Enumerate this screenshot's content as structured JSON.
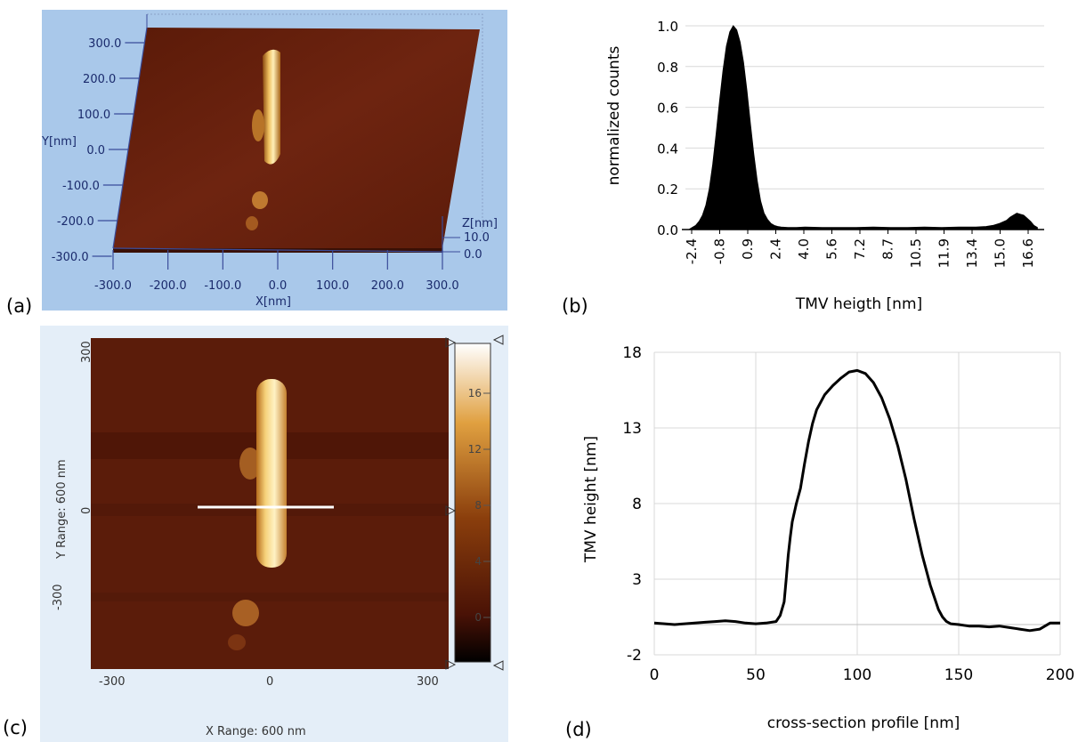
{
  "labels": {
    "a": "(a)",
    "b": "(b)",
    "c": "(c)",
    "d": "(d)"
  },
  "panel_a": {
    "y_axis_title": "Y[nm]",
    "x_axis_title": "X[nm]",
    "z_axis_title": "Z[nm]",
    "y_ticks": [
      "300.0",
      "200.0",
      "100.0",
      "0.0",
      "-100.0",
      "-200.0",
      "-300.0"
    ],
    "x_ticks": [
      "-300.0",
      "-200.0",
      "-100.0",
      "0.0",
      "100.0",
      "200.0",
      "300.0"
    ],
    "z_ticks": [
      "10.0",
      "0.0"
    ]
  },
  "panel_c": {
    "y_axis_title": "Y Range: 600 nm",
    "x_axis_title": "X Range: 600 nm",
    "y_ticks": [
      "300",
      "0",
      "-300"
    ],
    "x_ticks": [
      "-300",
      "0",
      "300"
    ],
    "colorbar_ticks": [
      "16",
      "12",
      "8",
      "4",
      "0"
    ]
  },
  "chart_data": [
    {
      "type": "bar",
      "ylabel": "normalized counts",
      "xlabel": "TMV heigth [nm]",
      "ylim": [
        0,
        1.0
      ],
      "y_ticks": [
        "0.0",
        "0.2",
        "0.4",
        "0.6",
        "0.8",
        "1.0"
      ],
      "x_tick_labels": [
        "-2.4",
        "-0.8",
        "0.9",
        "2.4",
        "4.0",
        "5.6",
        "7.2",
        "8.7",
        "10.5",
        "11.9",
        "13.4",
        "15.0",
        "16.6"
      ],
      "x": [
        -2.8,
        -2.6,
        -2.4,
        -2.2,
        -2.0,
        -1.8,
        -1.6,
        -1.4,
        -1.2,
        -1.0,
        -0.8,
        -0.6,
        -0.4,
        -0.2,
        0.0,
        0.2,
        0.4,
        0.6,
        0.8,
        1.0,
        1.2,
        1.4,
        1.6,
        1.8,
        2.0,
        2.2,
        2.4,
        2.6,
        3.0,
        3.5,
        4.0,
        5.0,
        6.0,
        7.0,
        8.0,
        9.0,
        10.0,
        11.0,
        12.0,
        13.0,
        14.0,
        14.6,
        15.0,
        15.4,
        15.8,
        16.0,
        16.2,
        16.4,
        16.6,
        16.8,
        17.0,
        17.2,
        17.4,
        17.6
      ],
      "values": [
        0.0,
        0.01,
        0.02,
        0.04,
        0.07,
        0.12,
        0.2,
        0.32,
        0.47,
        0.63,
        0.78,
        0.9,
        0.97,
        1.0,
        0.98,
        0.92,
        0.82,
        0.68,
        0.52,
        0.37,
        0.24,
        0.14,
        0.08,
        0.05,
        0.03,
        0.02,
        0.015,
        0.012,
        0.01,
        0.01,
        0.012,
        0.01,
        0.01,
        0.01,
        0.012,
        0.01,
        0.01,
        0.012,
        0.01,
        0.012,
        0.012,
        0.015,
        0.02,
        0.03,
        0.045,
        0.06,
        0.07,
        0.08,
        0.075,
        0.07,
        0.055,
        0.04,
        0.02,
        0.01
      ]
    },
    {
      "type": "line",
      "ylabel": "TMV height [nm]",
      "xlabel": "cross-section profile [nm]",
      "xlim": [
        0,
        200
      ],
      "ylim": [
        -2,
        18
      ],
      "x_ticks": [
        "0",
        "50",
        "100",
        "150",
        "200"
      ],
      "y_ticks": [
        "-2",
        "3",
        "8",
        "13",
        "18"
      ],
      "grid": true,
      "x": [
        0,
        5,
        10,
        15,
        20,
        25,
        30,
        35,
        40,
        45,
        50,
        55,
        60,
        62,
        64,
        65,
        66,
        67,
        68,
        70,
        72,
        74,
        76,
        78,
        80,
        84,
        88,
        92,
        96,
        100,
        104,
        108,
        112,
        116,
        120,
        124,
        128,
        132,
        136,
        140,
        142,
        144,
        146,
        150,
        155,
        160,
        165,
        170,
        175,
        180,
        185,
        190,
        195,
        200
      ],
      "y": [
        0.1,
        0.05,
        0.0,
        0.05,
        0.1,
        0.15,
        0.2,
        0.25,
        0.2,
        0.1,
        0.05,
        0.1,
        0.2,
        0.6,
        1.5,
        3.0,
        4.6,
        5.8,
        6.8,
        8.0,
        9.0,
        10.6,
        12.1,
        13.3,
        14.2,
        15.2,
        15.8,
        16.3,
        16.7,
        16.8,
        16.6,
        16.0,
        15.0,
        13.6,
        11.8,
        9.6,
        7.0,
        4.6,
        2.6,
        1.0,
        0.5,
        0.2,
        0.05,
        0.0,
        -0.1,
        -0.1,
        -0.15,
        -0.1,
        -0.2,
        -0.3,
        -0.4,
        -0.3,
        0.1,
        0.1
      ]
    }
  ]
}
